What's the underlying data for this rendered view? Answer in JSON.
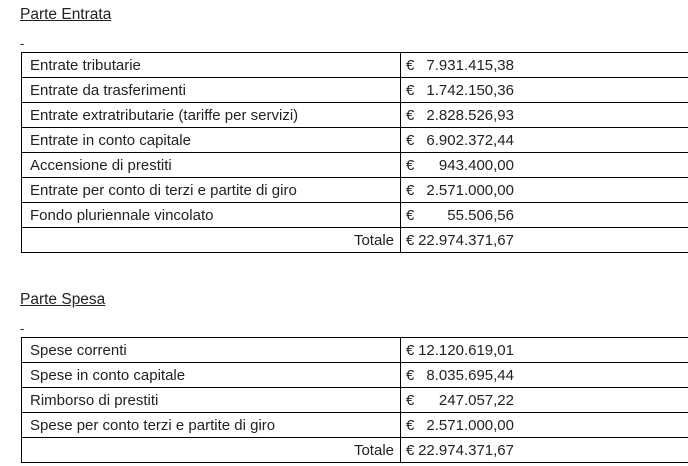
{
  "page": {
    "background_color": "#ffffff",
    "text_color": "#222222",
    "border_color": "#000000"
  },
  "sections": [
    {
      "heading": "Parte Entrata",
      "marker": "-",
      "currency": "€",
      "rows": [
        {
          "label": "Entrate tributarie",
          "value": "7.931.415,38"
        },
        {
          "label": "Entrate da trasferimenti",
          "value": "1.742.150,36"
        },
        {
          "label": "Entrate extratributarie (tariffe per servizi)",
          "value": "2.828.526,93"
        },
        {
          "label": "Entrate in conto capitale",
          "value": "6.902.372,44"
        },
        {
          "label": "Accensione di prestiti",
          "value": "943.400,00"
        },
        {
          "label": "Entrate per conto di terzi e partite di giro",
          "value": "2.571.000,00"
        },
        {
          "label": "Fondo pluriennale vincolato",
          "value": "55.506,56"
        }
      ],
      "total": {
        "label": "Totale",
        "value": "22.974.371,67"
      }
    },
    {
      "heading": "Parte Spesa",
      "marker": "-",
      "currency": "€",
      "rows": [
        {
          "label": "Spese correnti",
          "value": "12.120.619,01"
        },
        {
          "label": "Spese in conto capitale",
          "value": "8.035.695,44"
        },
        {
          "label": "Rimborso di prestiti",
          "value": "247.057,22"
        },
        {
          "label": "Spese per conto terzi e partite di giro",
          "value": "2.571.000,00"
        }
      ],
      "total": {
        "label": "Totale",
        "value": "22.974.371,67"
      }
    }
  ]
}
